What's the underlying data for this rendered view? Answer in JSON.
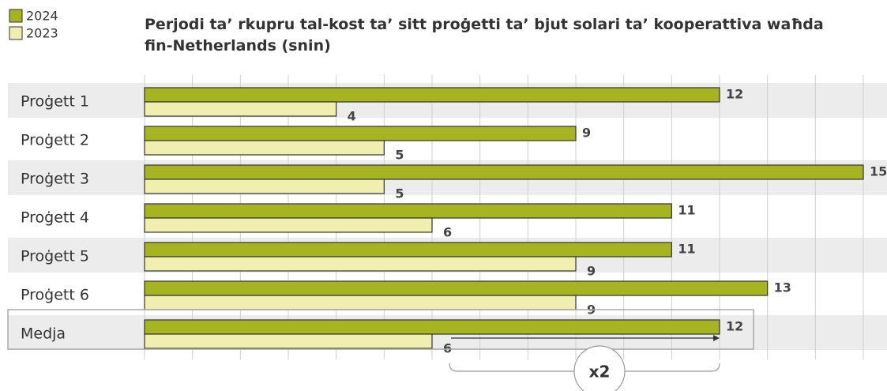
{
  "chart_data": {
    "type": "hbar",
    "title": "Perjodi ta’ rkupru tal-kost ta’ sitt proġetti ta’ bjut solari ta’ kooperattiva waħda fin-Netherlands (snin)",
    "categories": [
      "Proġett 1",
      "Proġett 2",
      "Proġett 3",
      "Proġett 4",
      "Proġett 5",
      "Proġett 6",
      "Medja"
    ],
    "series": [
      {
        "name": "2024",
        "color": "#a7b422",
        "values": [
          12,
          9,
          15,
          11,
          11,
          13,
          12
        ]
      },
      {
        "name": "2023",
        "color": "#f1efb0",
        "values": [
          4,
          5,
          5,
          6,
          9,
          9,
          6
        ]
      }
    ],
    "xlim": [
      0,
      15
    ],
    "xticks": [
      0,
      1,
      2,
      3,
      4,
      5,
      6,
      7,
      8,
      9,
      10,
      11,
      12,
      13,
      14,
      15
    ],
    "grid": true,
    "legend": "top-left",
    "annotation": "x2"
  }
}
